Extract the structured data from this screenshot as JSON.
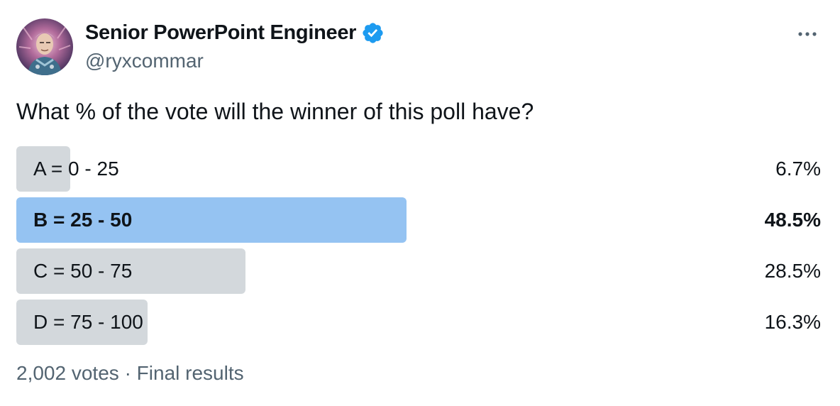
{
  "author": {
    "display_name": "Senior PowerPoint Engineer",
    "handle": "@ryxcommar",
    "verified": true,
    "verified_color": "#1d9bf0"
  },
  "tweet": {
    "question": "What % of the vote will the winner of this poll have?"
  },
  "poll": {
    "options": [
      {
        "label": "A = 0 - 25",
        "percent_text": "6.7%",
        "percent": 6.7,
        "winner": false
      },
      {
        "label": "B = 25 - 50",
        "percent_text": "48.5%",
        "percent": 48.5,
        "winner": true
      },
      {
        "label": "C = 50 - 75",
        "percent_text": "28.5%",
        "percent": 28.5,
        "winner": false
      },
      {
        "label": "D = 75 - 100",
        "percent_text": "16.3%",
        "percent": 16.3,
        "winner": false
      }
    ],
    "votes": "2,002 votes",
    "separator": "·",
    "status": "Final results",
    "bar_color": "#d3d8dc",
    "winner_bar_color": "#95c3f2"
  },
  "icons": {
    "verified": "verified-badge-icon",
    "more": "more-options-icon"
  }
}
